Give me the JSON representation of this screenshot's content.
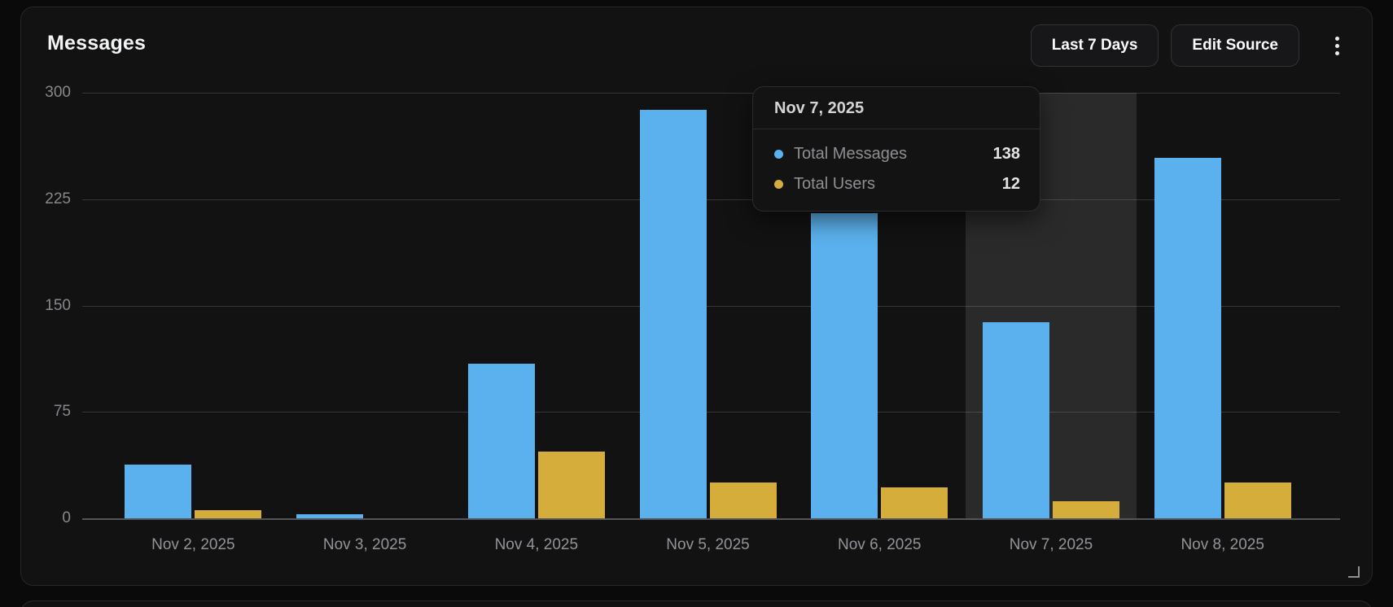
{
  "card": {
    "title": "Messages",
    "range_button_label": "Last 7 Days",
    "edit_button_label": "Edit Source",
    "kebab_icon": "vertical-ellipsis-icon",
    "resize_icon": "corner-resize-icon"
  },
  "tooltip": {
    "title": "Nov 7, 2025",
    "rows": [
      {
        "label": "Total Messages",
        "value": "138",
        "color": "#5bb1ed"
      },
      {
        "label": "Total Users",
        "value": "12",
        "color": "#d5ad3b"
      }
    ]
  },
  "chart_data": {
    "type": "bar",
    "title": "Messages",
    "categories": [
      "Nov 2, 2025",
      "Nov 3, 2025",
      "Nov 4, 2025",
      "Nov 5, 2025",
      "Nov 6, 2025",
      "Nov 7, 2025",
      "Nov 8, 2025"
    ],
    "series": [
      {
        "name": "Total Messages",
        "color": "#5bb1ed",
        "values": [
          38,
          3,
          109,
          288,
          215,
          138,
          254
        ]
      },
      {
        "name": "Total Users",
        "color": "#d5ad3b",
        "values": [
          6,
          0,
          47,
          25,
          22,
          12,
          25
        ]
      }
    ],
    "xlabel": "",
    "ylabel": "",
    "ylim": [
      0,
      300
    ],
    "yticks": [
      0,
      75,
      150,
      225,
      300
    ],
    "grid": true,
    "legend_position": "none",
    "highlighted_category": "Nov 7, 2025",
    "highlighted_index": 5
  },
  "colors": {
    "page_bg": "#0a0a0b",
    "card_bg": "#121213",
    "highlight_band": "rgba(255,255,255,0.10)",
    "gridline": "#353639",
    "axis_line": "#54555a"
  }
}
